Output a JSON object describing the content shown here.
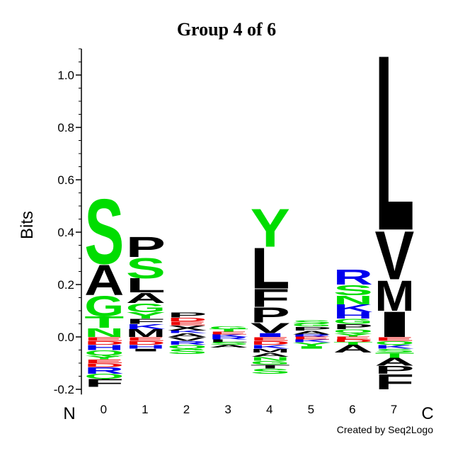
{
  "chart_data": {
    "type": "sequence-logo",
    "title": "Group 4 of 6",
    "ylabel": "Bits",
    "ylim": [
      -0.22,
      1.1
    ],
    "yticks": [
      -0.2,
      0.0,
      0.2,
      0.4,
      0.6,
      0.8,
      1.0
    ],
    "ytick_labels": [
      "-0.2",
      "0.0",
      "0.2",
      "0.4",
      "0.6",
      "0.8",
      "1.0"
    ],
    "minor_tick_step": 0.05,
    "n_label": "N",
    "c_label": "C",
    "credit": "Created by Seq2Logo",
    "colors": {
      "green": "#00dd00",
      "black": "#000000",
      "blue": "#0000ee",
      "red": "#ee0000"
    },
    "positions": [
      {
        "label": "0",
        "positive": [
          {
            "letter": "N",
            "value": 0.035,
            "color": "green"
          },
          {
            "letter": "T",
            "value": 0.045,
            "color": "green"
          },
          {
            "letter": "G",
            "value": 0.08,
            "color": "green"
          },
          {
            "letter": "A",
            "value": 0.12,
            "color": "black"
          },
          {
            "letter": "S",
            "value": 0.255,
            "color": "green"
          }
        ],
        "negative": [
          {
            "letter": "E",
            "value": 0.015,
            "color": "red"
          },
          {
            "letter": "D",
            "value": 0.015,
            "color": "red"
          },
          {
            "letter": "H",
            "value": 0.02,
            "color": "blue"
          },
          {
            "letter": "Q",
            "value": 0.02,
            "color": "green"
          },
          {
            "letter": "Y",
            "value": 0.015,
            "color": "green"
          },
          {
            "letter": "E",
            "value": 0.015,
            "color": "red"
          },
          {
            "letter": "D",
            "value": 0.015,
            "color": "red"
          },
          {
            "letter": "R",
            "value": 0.025,
            "color": "blue"
          },
          {
            "letter": "Q",
            "value": 0.02,
            "color": "green"
          },
          {
            "letter": "F",
            "value": 0.03,
            "color": "black"
          }
        ]
      },
      {
        "label": "1",
        "positive": [
          {
            "letter": "M",
            "value": 0.03,
            "color": "black"
          },
          {
            "letter": "K",
            "value": 0.02,
            "color": "blue"
          },
          {
            "letter": "F",
            "value": 0.02,
            "color": "black"
          },
          {
            "letter": "Y",
            "value": 0.025,
            "color": "green"
          },
          {
            "letter": "G",
            "value": 0.035,
            "color": "green"
          },
          {
            "letter": "A",
            "value": 0.04,
            "color": "black"
          },
          {
            "letter": "L",
            "value": 0.055,
            "color": "black"
          },
          {
            "letter": "S",
            "value": 0.08,
            "color": "green"
          },
          {
            "letter": "P",
            "value": 0.08,
            "color": "black"
          }
        ],
        "negative": [
          {
            "letter": "E",
            "value": 0.015,
            "color": "red"
          },
          {
            "letter": "D",
            "value": 0.015,
            "color": "red"
          },
          {
            "letter": "H",
            "value": 0.015,
            "color": "blue"
          },
          {
            "letter": "I",
            "value": 0.01,
            "color": "black"
          }
        ]
      },
      {
        "label": "2",
        "positive": [
          {
            "letter": "A",
            "value": 0.015,
            "color": "black"
          },
          {
            "letter": "K",
            "value": 0.01,
            "color": "blue"
          },
          {
            "letter": "X",
            "value": 0.02,
            "color": "black"
          },
          {
            "letter": "E",
            "value": 0.015,
            "color": "red"
          },
          {
            "letter": "D",
            "value": 0.015,
            "color": "red"
          },
          {
            "letter": "P",
            "value": 0.02,
            "color": "black"
          }
        ],
        "negative": [
          {
            "letter": "V",
            "value": 0.015,
            "color": "black"
          },
          {
            "letter": "R",
            "value": 0.015,
            "color": "blue"
          },
          {
            "letter": "Q",
            "value": 0.015,
            "color": "green"
          },
          {
            "letter": "S",
            "value": 0.02,
            "color": "green"
          }
        ]
      },
      {
        "label": "3",
        "positive": [
          {
            "letter": "K",
            "value": 0.01,
            "color": "blue"
          },
          {
            "letter": "E",
            "value": 0.01,
            "color": "red"
          },
          {
            "letter": "T",
            "value": 0.01,
            "color": "green"
          },
          {
            "letter": "G",
            "value": 0.01,
            "color": "green"
          }
        ],
        "negative": [
          {
            "letter": "R",
            "value": 0.01,
            "color": "blue"
          },
          {
            "letter": "L",
            "value": 0.01,
            "color": "black"
          },
          {
            "letter": "S",
            "value": 0.01,
            "color": "green"
          },
          {
            "letter": "A",
            "value": 0.01,
            "color": "black"
          }
        ]
      },
      {
        "label": "4",
        "positive": [
          {
            "letter": "I",
            "value": 0.015,
            "color": "blue"
          },
          {
            "letter": "V",
            "value": 0.04,
            "color": "black"
          },
          {
            "letter": "P",
            "value": 0.06,
            "color": "black"
          },
          {
            "letter": "F",
            "value": 0.07,
            "color": "black"
          },
          {
            "letter": "L",
            "value": 0.16,
            "color": "black"
          },
          {
            "letter": "Y",
            "value": 0.15,
            "color": "green"
          }
        ],
        "negative": [
          {
            "letter": "E",
            "value": 0.015,
            "color": "red"
          },
          {
            "letter": "D",
            "value": 0.015,
            "color": "red"
          },
          {
            "letter": "K",
            "value": 0.015,
            "color": "blue"
          },
          {
            "letter": "M",
            "value": 0.015,
            "color": "black"
          },
          {
            "letter": "A",
            "value": 0.015,
            "color": "black"
          },
          {
            "letter": "N",
            "value": 0.015,
            "color": "green"
          },
          {
            "letter": "G",
            "value": 0.015,
            "color": "green"
          },
          {
            "letter": "T",
            "value": 0.015,
            "color": "black"
          },
          {
            "letter": "S",
            "value": 0.02,
            "color": "green"
          }
        ]
      },
      {
        "label": "5",
        "positive": [
          {
            "letter": "R",
            "value": 0.01,
            "color": "blue"
          },
          {
            "letter": "A",
            "value": 0.015,
            "color": "black"
          },
          {
            "letter": "P",
            "value": 0.015,
            "color": "black"
          },
          {
            "letter": "G",
            "value": 0.01,
            "color": "green"
          },
          {
            "letter": "S",
            "value": 0.015,
            "color": "green"
          }
        ],
        "negative": [
          {
            "letter": "E",
            "value": 0.01,
            "color": "red"
          },
          {
            "letter": "K",
            "value": 0.01,
            "color": "blue"
          },
          {
            "letter": "Y",
            "value": 0.015,
            "color": "green"
          },
          {
            "letter": "I",
            "value": 0.01,
            "color": "green"
          }
        ]
      },
      {
        "label": "6",
        "positive": [
          {
            "letter": "Y",
            "value": 0.015,
            "color": "green"
          },
          {
            "letter": "Q",
            "value": 0.015,
            "color": "green"
          },
          {
            "letter": "P",
            "value": 0.02,
            "color": "black"
          },
          {
            "letter": "G",
            "value": 0.02,
            "color": "green"
          },
          {
            "letter": "H",
            "value": 0.025,
            "color": "blue"
          },
          {
            "letter": "K",
            "value": 0.03,
            "color": "blue"
          },
          {
            "letter": "N",
            "value": 0.035,
            "color": "green"
          },
          {
            "letter": "S",
            "value": 0.04,
            "color": "green"
          },
          {
            "letter": "R",
            "value": 0.06,
            "color": "blue"
          }
        ],
        "negative": [
          {
            "letter": "E",
            "value": 0.01,
            "color": "red"
          },
          {
            "letter": "D",
            "value": 0.01,
            "color": "red"
          },
          {
            "letter": "T",
            "value": 0.01,
            "color": "green"
          },
          {
            "letter": "A",
            "value": 0.03,
            "color": "black"
          }
        ]
      },
      {
        "label": "7",
        "positive": [
          {
            "letter": "I",
            "value": 0.1,
            "color": "black"
          },
          {
            "letter": "M",
            "value": 0.12,
            "color": "black"
          },
          {
            "letter": "V",
            "value": 0.19,
            "color": "black"
          },
          {
            "letter": "L",
            "value": 0.69,
            "color": "black"
          }
        ],
        "negative": [
          {
            "letter": "E",
            "value": 0.015,
            "color": "red"
          },
          {
            "letter": "Q",
            "value": 0.015,
            "color": "green"
          },
          {
            "letter": "K",
            "value": 0.015,
            "color": "blue"
          },
          {
            "letter": "S",
            "value": 0.015,
            "color": "green"
          },
          {
            "letter": "T",
            "value": 0.02,
            "color": "green"
          },
          {
            "letter": "A",
            "value": 0.03,
            "color": "black"
          },
          {
            "letter": "P",
            "value": 0.03,
            "color": "black"
          },
          {
            "letter": "F",
            "value": 0.06,
            "color": "black"
          }
        ]
      }
    ]
  }
}
